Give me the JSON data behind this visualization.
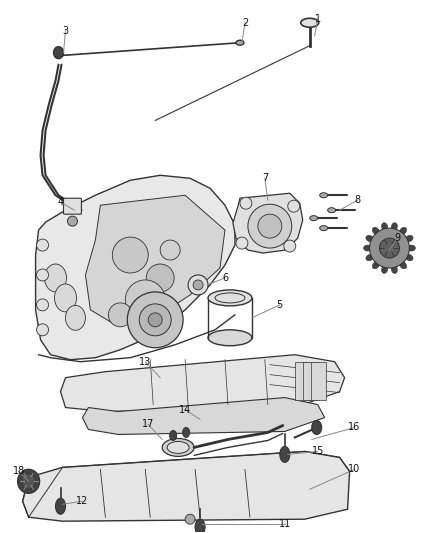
{
  "background_color": "#ffffff",
  "figsize": [
    4.38,
    5.33
  ],
  "dpi": 100,
  "label_fontsize": 7,
  "line_color": "#333333",
  "callout_line_color": "#888888",
  "component_fill": "#f0f0f0",
  "dark_fill": "#444444",
  "mid_fill": "#aaaaaa",
  "light_fill": "#e0e0e0"
}
